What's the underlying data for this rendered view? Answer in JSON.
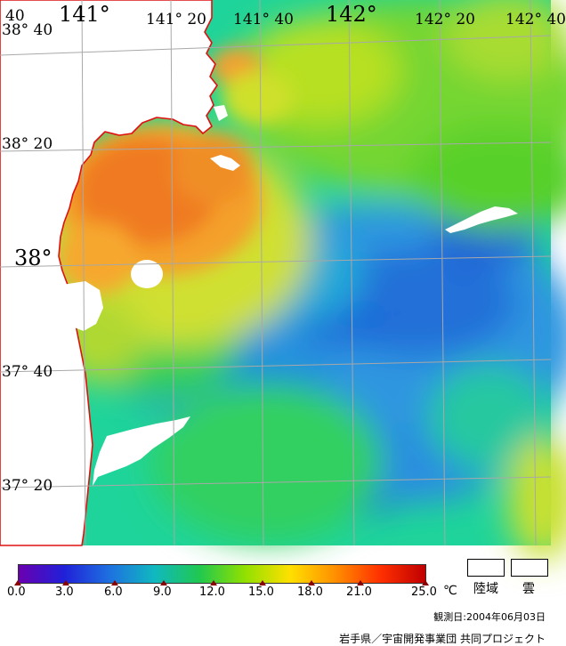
{
  "map": {
    "longitude_labels": [
      "141°",
      "141° 20",
      "141° 40",
      "142°",
      "142° 20",
      "142° 40"
    ],
    "latitude_labels": [
      "38° 40",
      "38° 20",
      "38°",
      "37° 40",
      "37° 20"
    ]
  },
  "colorbar": {
    "ticks": [
      "0.0",
      "3.0",
      "6.0",
      "9.0",
      "12.0",
      "15.0",
      "18.0",
      "21.0",
      "25.0"
    ],
    "unit": "℃",
    "colors": [
      "#6a00b0",
      "#2020d8",
      "#1e70e0",
      "#10b8c0",
      "#20c850",
      "#90e000",
      "#ffe000",
      "#ff9000",
      "#ff3000",
      "#c00000"
    ]
  },
  "legend": {
    "land_label": "陸域",
    "cloud_label": "雲"
  },
  "observation_date": "観測日:2004年06月03日",
  "credit": "岩手県／宇宙開発事業団 共同プロジェクト"
}
